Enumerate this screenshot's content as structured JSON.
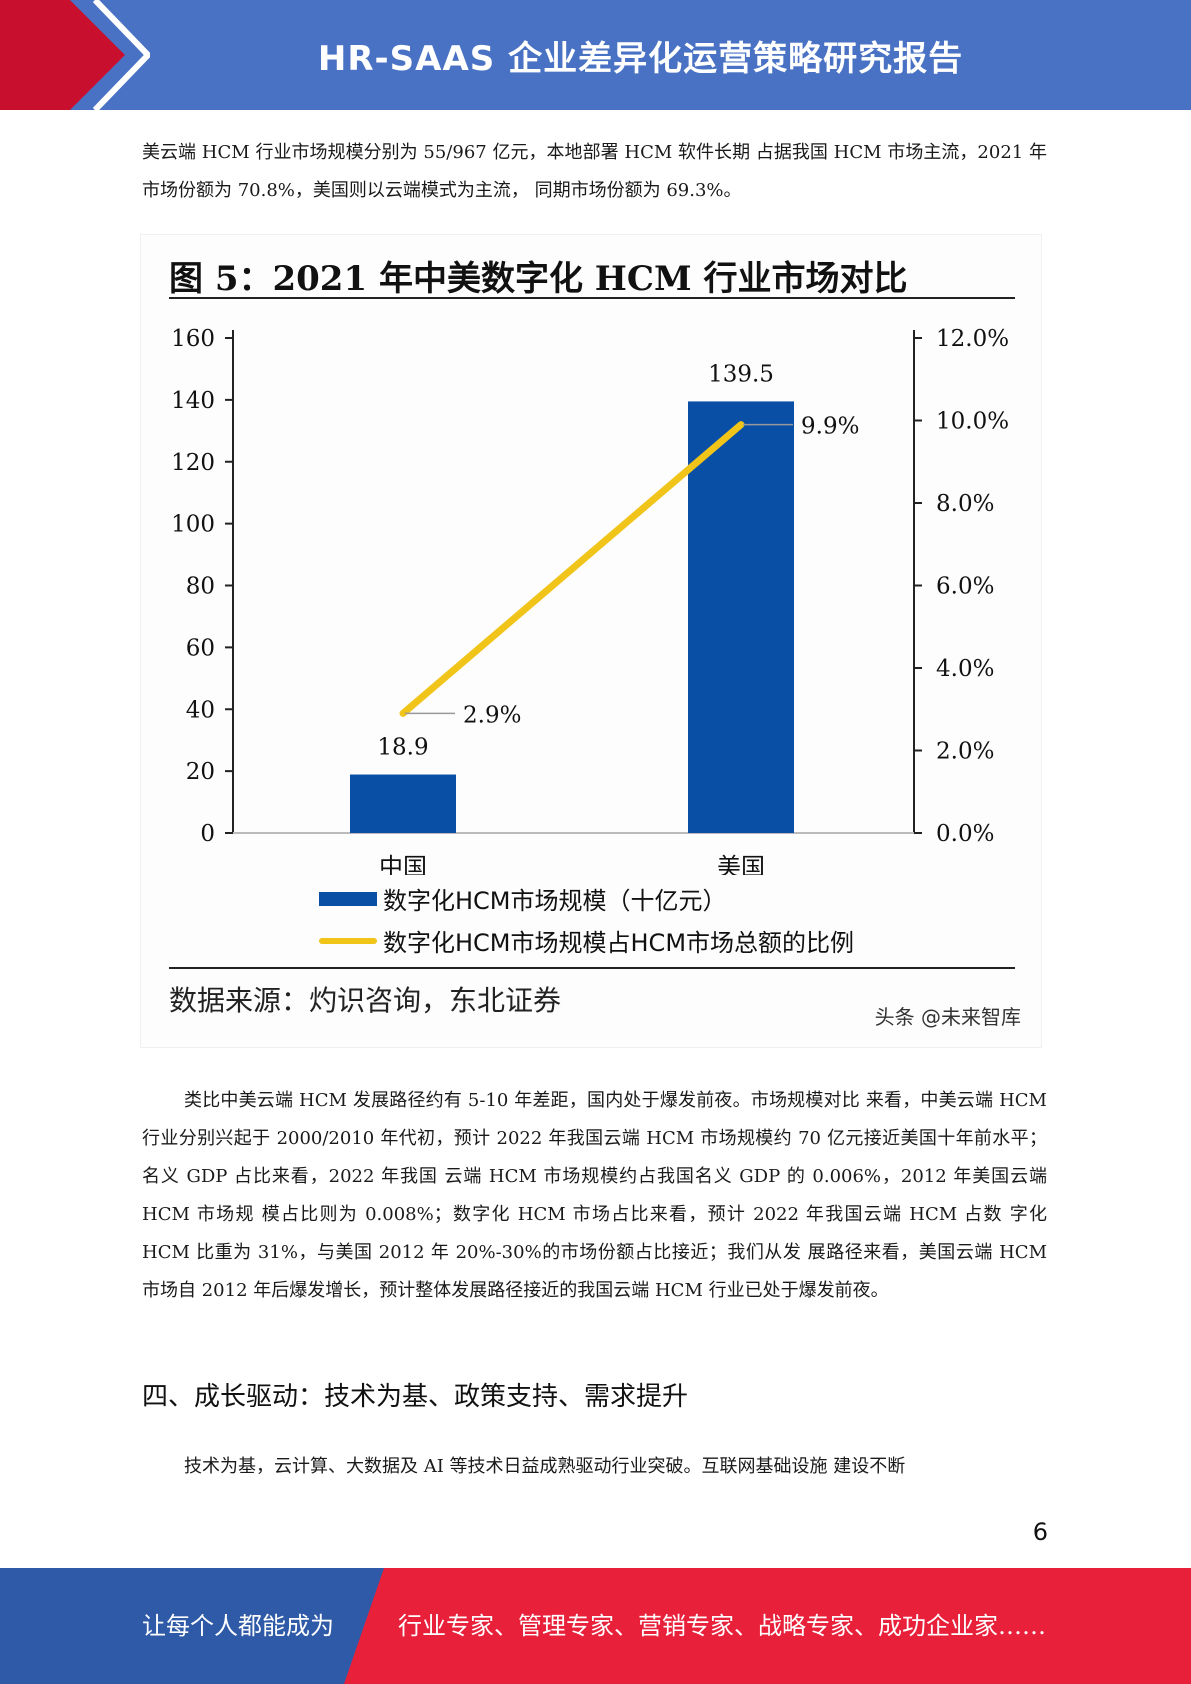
{
  "header": {
    "title": "HR-SAAS 企业差异化运营策略研究报告"
  },
  "body": {
    "para_1": "美云端 HCM 行业市场规模分别为 55/967 亿元，本地部署 HCM 软件长期 占据我国 HCM 市场主流，2021 年市场份额为 70.8%，美国则以云端模式为主流， 同期市场份额为 69.3%。",
    "para_2": "类比中美云端 HCM 发展路径约有 5-10 年差距，国内处于爆发前夜。市场规模对比 来看，中美云端 HCM 行业分别兴起于 2000/2010 年代初，预计 2022 年我国云端 HCM 市场规模约 70 亿元接近美国十年前水平；名义 GDP 占比来看，2022 年我国 云端 HCM 市场规模约占我国名义 GDP 的 0.006%，2012 年美国云端 HCM 市场规 模占比则为 0.008%；数字化 HCM 市场占比来看，预计 2022 年我国云端 HCM 占数 字化 HCM 比重为 31%，与美国 2012 年 20%-30%的市场份额占比接近；我们从发 展路径来看，美国云端 HCM 市场自 2012 年后爆发增长，预计整体发展路径接近的我国云端 HCM 行业已处于爆发前夜。",
    "section_heading": "四、成长驱动：技术为基、政策支持、需求提升",
    "para_3": "技术为基，云计算、大数据及 AI 等技术日益成熟驱动行业突破。互联网基础设施 建设不断"
  },
  "figure": {
    "title": "图  5：2021 年中美数字化 HCM 行业市场对比",
    "source": "数据来源：灼识咨询，东北证券",
    "watermark": "头条 @未来智库"
  },
  "chart_data": {
    "type": "bar",
    "categories": [
      "中国",
      "美国"
    ],
    "series": [
      {
        "name": "数字化HCM市场规模（十亿元）",
        "type": "bar",
        "axis": "left",
        "values": [
          18.9,
          139.5
        ],
        "labels": [
          "18.9",
          "139.5"
        ],
        "color": "#0a4fa6"
      },
      {
        "name": "数字化HCM市场规模占HCM市场总额的比例",
        "type": "line",
        "axis": "right",
        "values": [
          2.9,
          9.9
        ],
        "labels": [
          "2.9%",
          "9.9%"
        ],
        "color": "#f0c419"
      }
    ],
    "y_left": {
      "range": [
        0,
        160
      ],
      "ticks": [
        0,
        20,
        40,
        60,
        80,
        100,
        120,
        140,
        160
      ],
      "tick_labels": [
        "0",
        "20",
        "40",
        "60",
        "80",
        "100",
        "120",
        "140",
        "160"
      ]
    },
    "y_right": {
      "range": [
        0,
        12
      ],
      "ticks": [
        0,
        2,
        4,
        6,
        8,
        10,
        12
      ],
      "tick_labels": [
        "0.0%",
        "2.0%",
        "4.0%",
        "6.0%",
        "8.0%",
        "10.0%",
        "12.0%"
      ]
    },
    "grid": false,
    "legend": "bottom"
  },
  "page": {
    "number": "6"
  },
  "footer": {
    "left_text": "让每个人都能成为",
    "right_text": "行业专家、管理专家、营销专家、战略专家、成功企业家……"
  },
  "colors": {
    "header_blue": "#4a72c4",
    "header_red": "#c8102e",
    "footer_blue": "#2e5aa8",
    "footer_red": "#e8203a",
    "bar_blue": "#0a4fa6",
    "line_yellow": "#f0c419"
  }
}
